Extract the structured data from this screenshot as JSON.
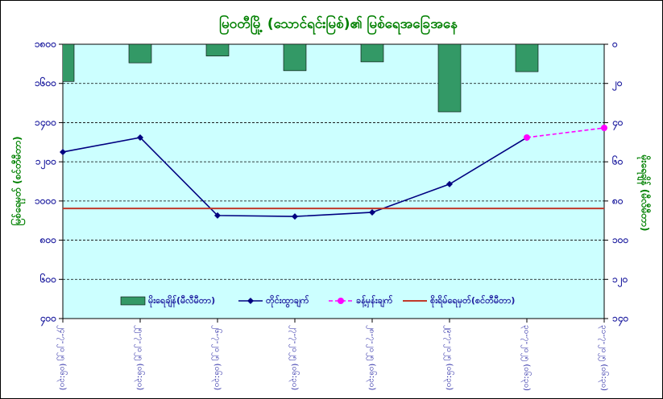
{
  "chart_data": {
    "type": "combo",
    "title": "မြဝတီမြို့ (သောင်ရင်းမြစ်)၏ မြစ်ရေအခြေအနေ",
    "y_label": "မြစ်ရေမှတ် (စင်တီမီတာ)",
    "y2_label": "မိုးရေချိန် (မီလီမီတာ)",
    "categories": [
      "၂၄-၇-၂၀၂၅ (၀၆:၃၀)",
      "၂၅-၇-၂၀၂၅ (၀၆:၃၀)",
      "၂၆-၇-၂၀၂၅ (၀၆:၃၀)",
      "၂၇-၇-၂၀၂၅ (၀၆:၃၀)",
      "၂၈-၇-၂၀၂၅ (၀၆:၃၀)",
      "၂၉-၇-၂၀၂၅ (၀၆:၃၀)",
      "၃၀-၇-၂၀၂၅ (၀၆:၃၀)",
      "၃၁-၇-၂၀၂၅ (၀၆:၃၀)"
    ],
    "ylim": [
      400,
      1800
    ],
    "yticks": [
      {
        "value": 400,
        "label": "၄၀၀"
      },
      {
        "value": 600,
        "label": "၆၀၀"
      },
      {
        "value": 800,
        "label": "၈၀၀"
      },
      {
        "value": 1000,
        "label": "၁၀၀၀"
      },
      {
        "value": 1200,
        "label": "၁၂၀၀"
      },
      {
        "value": 1400,
        "label": "၁၄၀၀"
      },
      {
        "value": 1600,
        "label": "၁၆၀၀"
      },
      {
        "value": 1800,
        "label": "၁၈၀၀"
      }
    ],
    "y2lim": [
      0,
      140
    ],
    "y2_inverted": true,
    "y2ticks": [
      {
        "value": 0,
        "label": "၀"
      },
      {
        "value": 20,
        "label": "၂၀"
      },
      {
        "value": 40,
        "label": "၄၀"
      },
      {
        "value": 60,
        "label": "၆၀"
      },
      {
        "value": 80,
        "label": "၈၀"
      },
      {
        "value": 100,
        "label": "၁၀၀"
      },
      {
        "value": 120,
        "label": "၁၂၀"
      },
      {
        "value": 140,
        "label": "၁၄၀"
      }
    ],
    "grid": true,
    "series": [
      {
        "name": "မိုးရေချိန်(မီလီမီတာ)",
        "kind": "bar",
        "axis": "y2",
        "color": "#339966",
        "values": [
          19,
          9.5,
          6,
          13.5,
          9,
          34.5,
          14,
          null
        ]
      },
      {
        "name": "တိုင်းထွာချက်",
        "kind": "line",
        "color": "#000080",
        "marker": "diamond",
        "values": [
          1250,
          1324,
          926,
          921,
          942,
          1086,
          1324,
          null
        ]
      },
      {
        "name": "ခန့်မှန်းချက်",
        "kind": "line",
        "dashed": true,
        "color": "#ff00ff",
        "marker": "circle",
        "values": [
          null,
          null,
          null,
          null,
          null,
          null,
          1324,
          1373
        ]
      },
      {
        "name": "စိုးရိမ်ရေမှတ်(စင်တီမီတာ)",
        "kind": "hline",
        "color": "#c0392b",
        "value": 962
      }
    ]
  }
}
